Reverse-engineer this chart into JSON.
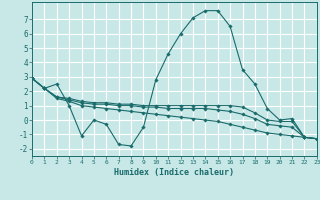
{
  "xlabel": "Humidex (Indice chaleur)",
  "bg_color": "#c8e8e8",
  "grid_color": "#ffffff",
  "line_color": "#1a6b6b",
  "x_ticks": [
    0,
    1,
    2,
    3,
    4,
    5,
    6,
    7,
    8,
    9,
    10,
    11,
    12,
    13,
    14,
    15,
    16,
    17,
    18,
    19,
    20,
    21,
    22,
    23
  ],
  "y_ticks": [
    -2,
    -1,
    0,
    1,
    2,
    3,
    4,
    5,
    6,
    7
  ],
  "xlim": [
    0,
    23
  ],
  "ylim": [
    -2.5,
    8.2
  ],
  "series": [
    {
      "x": [
        0,
        1,
        2,
        3,
        4,
        5,
        6,
        7,
        8,
        9,
        10,
        11,
        12,
        13,
        14,
        15,
        16,
        17,
        18,
        19,
        20,
        21,
        22,
        23
      ],
      "y": [
        2.9,
        2.2,
        2.5,
        1.0,
        -1.1,
        0.0,
        -0.3,
        -1.7,
        -1.8,
        -0.5,
        2.8,
        4.6,
        6.0,
        7.1,
        7.6,
        7.6,
        6.5,
        3.5,
        2.5,
        0.8,
        0.0,
        0.1,
        -1.2,
        -1.3
      ]
    },
    {
      "x": [
        0,
        1,
        2,
        3,
        4,
        5,
        6,
        7,
        8,
        9,
        10,
        11,
        12,
        13,
        14,
        15,
        16,
        17,
        18,
        19,
        20,
        21,
        22,
        23
      ],
      "y": [
        2.9,
        2.2,
        1.6,
        1.5,
        1.3,
        1.2,
        1.2,
        1.1,
        1.1,
        1.0,
        1.0,
        1.0,
        1.0,
        1.0,
        1.0,
        1.0,
        1.0,
        0.9,
        0.5,
        0.0,
        -0.1,
        -0.1,
        -1.2,
        -1.3
      ]
    },
    {
      "x": [
        0,
        1,
        2,
        3,
        4,
        5,
        6,
        7,
        8,
        9,
        10,
        11,
        12,
        13,
        14,
        15,
        16,
        17,
        18,
        19,
        20,
        21,
        22,
        23
      ],
      "y": [
        2.9,
        2.2,
        1.6,
        1.4,
        1.2,
        1.1,
        1.1,
        1.0,
        1.0,
        0.9,
        0.9,
        0.8,
        0.8,
        0.8,
        0.8,
        0.7,
        0.6,
        0.4,
        0.1,
        -0.3,
        -0.4,
        -0.5,
        -1.2,
        -1.3
      ]
    },
    {
      "x": [
        0,
        1,
        2,
        3,
        4,
        5,
        6,
        7,
        8,
        9,
        10,
        11,
        12,
        13,
        14,
        15,
        16,
        17,
        18,
        19,
        20,
        21,
        22,
        23
      ],
      "y": [
        2.9,
        2.2,
        1.5,
        1.3,
        1.0,
        0.9,
        0.8,
        0.7,
        0.6,
        0.5,
        0.4,
        0.3,
        0.2,
        0.1,
        0.0,
        -0.1,
        -0.3,
        -0.5,
        -0.7,
        -0.9,
        -1.0,
        -1.1,
        -1.2,
        -1.3
      ]
    }
  ]
}
